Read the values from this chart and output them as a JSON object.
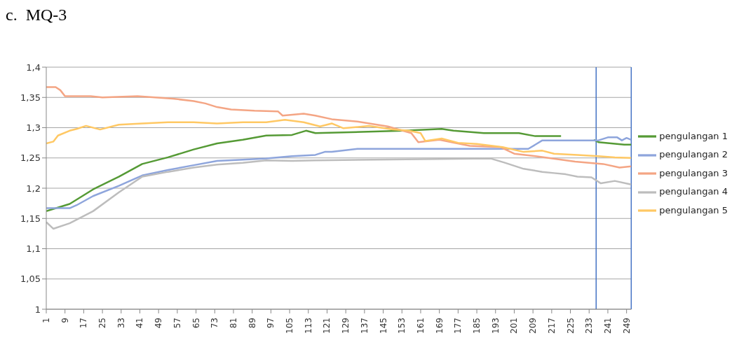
{
  "chart_data": {
    "type": "line",
    "title": "c.  MQ-3",
    "xlim": [
      1,
      251
    ],
    "xticks": [
      1,
      9,
      17,
      25,
      33,
      41,
      49,
      57,
      65,
      73,
      81,
      89,
      97,
      105,
      113,
      121,
      129,
      137,
      145,
      153,
      161,
      169,
      177,
      185,
      193,
      201,
      209,
      217,
      225,
      233,
      241,
      249
    ],
    "ylim": [
      1,
      1.4
    ],
    "yticks": [
      {
        "value": 1,
        "label": "1"
      },
      {
        "value": 1.05,
        "label": "1,05"
      },
      {
        "value": 1.1,
        "label": "1,1"
      },
      {
        "value": 1.15,
        "label": "1,15"
      },
      {
        "value": 1.2,
        "label": "1,2"
      },
      {
        "value": 1.25,
        "label": "1,25"
      },
      {
        "value": 1.3,
        "label": "1,3"
      },
      {
        "value": 1.35,
        "label": "1,35"
      },
      {
        "value": 1.4,
        "label": "1,4"
      }
    ],
    "grid": "y",
    "legend": "right",
    "marker": "none",
    "line_style": "solid",
    "ref_lines": [
      {
        "axis": "x",
        "value": 236,
        "color": "#4472c4"
      },
      {
        "axis": "x",
        "value": 251,
        "color": "#4472c4"
      }
    ],
    "series": [
      {
        "name": "pengulangan 1",
        "color": "#559a35",
        "x": [
          1,
          11,
          21,
          32,
          42,
          53,
          64,
          74,
          85,
          95,
          106,
          112,
          116,
          154,
          170,
          175,
          188,
          203,
          210,
          221,
          222,
          235,
          237,
          248,
          251
        ],
        "values": [
          1.162,
          1.174,
          1.198,
          1.219,
          1.24,
          1.251,
          1.264,
          1.274,
          1.28,
          1.287,
          1.288,
          1.295,
          1.291,
          1.295,
          1.298,
          1.295,
          1.291,
          1.291,
          1.286,
          1.286,
          null,
          1.28,
          1.276,
          1.272,
          1.272
        ]
      },
      {
        "name": "pengulangan 2",
        "color": "#8ea5dc",
        "x": [
          1,
          11,
          14,
          21,
          32,
          42,
          53,
          64,
          74,
          85,
          95,
          106,
          116,
          120,
          123,
          134,
          207,
          213,
          237,
          241,
          245,
          247,
          249,
          251
        ],
        "values": [
          1.167,
          1.167,
          1.172,
          1.187,
          1.204,
          1.221,
          1.23,
          1.238,
          1.245,
          1.247,
          1.249,
          1.253,
          1.255,
          1.26,
          1.26,
          1.265,
          1.265,
          1.279,
          1.279,
          1.284,
          1.284,
          1.279,
          1.283,
          1.28
        ]
      },
      {
        "name": "pengulangan 3",
        "color": "#f4a584",
        "x": [
          1,
          5,
          7,
          9,
          20,
          25,
          40,
          55,
          64,
          69,
          74,
          80,
          90,
          100,
          102,
          111,
          116,
          123,
          134,
          147,
          157,
          160,
          169,
          182,
          195,
          201,
          214,
          227,
          239,
          246,
          251
        ],
        "values": [
          1.367,
          1.367,
          1.362,
          1.352,
          1.352,
          1.35,
          1.352,
          1.348,
          1.344,
          1.34,
          1.334,
          1.33,
          1.328,
          1.327,
          1.32,
          1.323,
          1.32,
          1.314,
          1.31,
          1.302,
          1.291,
          1.276,
          1.28,
          1.27,
          1.268,
          1.257,
          1.251,
          1.244,
          1.24,
          1.234,
          1.236
        ]
      },
      {
        "name": "pengulangan 4",
        "color": "#bdbdbd",
        "x": [
          1,
          4,
          11,
          21,
          32,
          42,
          53,
          64,
          74,
          85,
          95,
          106,
          116,
          191,
          197,
          205,
          213,
          218,
          223,
          228,
          234,
          238,
          244,
          251
        ],
        "values": [
          1.144,
          1.133,
          1.142,
          1.162,
          1.193,
          1.219,
          1.227,
          1.234,
          1.239,
          1.242,
          1.246,
          1.245,
          1.246,
          1.249,
          1.242,
          1.232,
          1.227,
          1.225,
          1.223,
          1.219,
          1.218,
          1.208,
          1.212,
          1.206
        ]
      },
      {
        "name": "pengulangan 5",
        "color": "#ffc864",
        "x": [
          1,
          4,
          6,
          11,
          14,
          18,
          24,
          32,
          42,
          53,
          64,
          74,
          85,
          95,
          103,
          111,
          118,
          123,
          128,
          139,
          149,
          156,
          161,
          163,
          170,
          177,
          185,
          196,
          205,
          213,
          218,
          228,
          237,
          244,
          251
        ],
        "values": [
          1.274,
          1.277,
          1.287,
          1.295,
          1.298,
          1.303,
          1.297,
          1.305,
          1.307,
          1.309,
          1.309,
          1.307,
          1.309,
          1.309,
          1.313,
          1.309,
          1.302,
          1.307,
          1.299,
          1.303,
          1.297,
          1.295,
          1.291,
          1.278,
          1.282,
          1.275,
          1.273,
          1.268,
          1.26,
          1.262,
          1.257,
          1.255,
          1.253,
          1.251,
          1.25
        ]
      }
    ]
  }
}
